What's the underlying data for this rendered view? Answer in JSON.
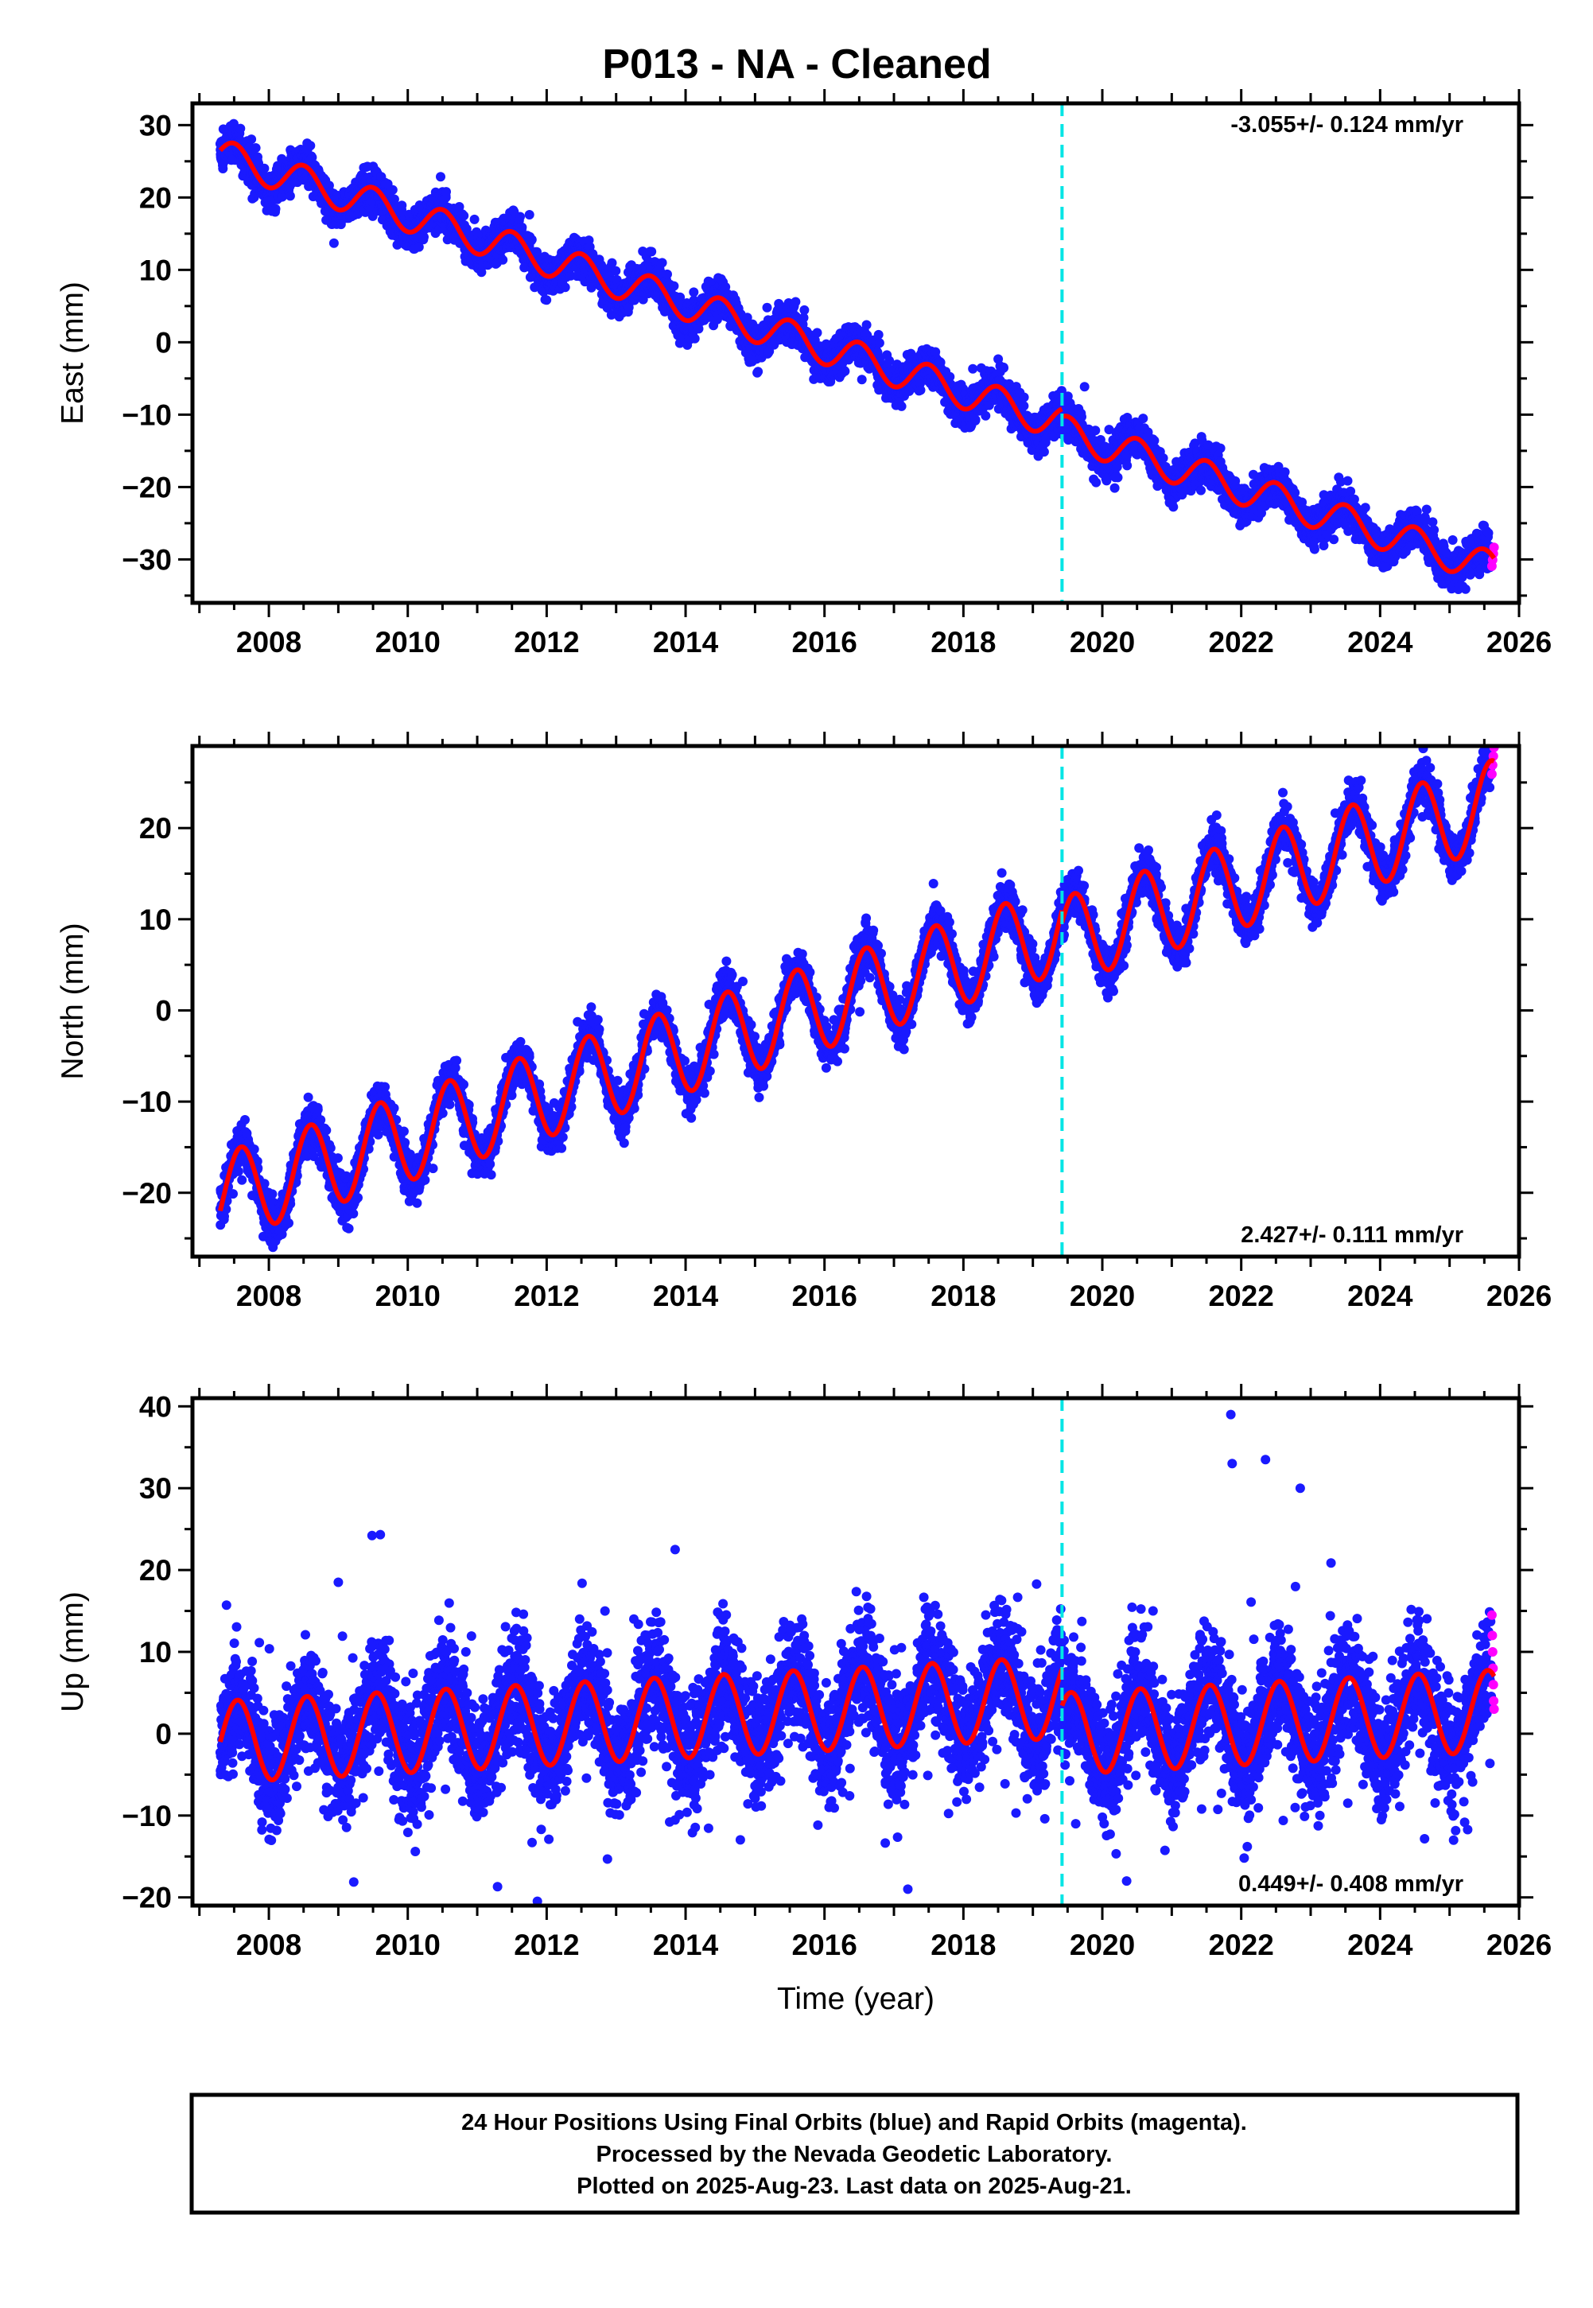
{
  "title": "P013  - NA - Cleaned",
  "colors": {
    "final_orbits": "#1a1aff",
    "rapid_orbits": "#ff00ff",
    "model": "#ff0000",
    "event": "#00e5e5"
  },
  "chart_data": [
    {
      "type": "scatter",
      "component": "east",
      "ylabel": "East (mm)",
      "xlabel": "",
      "xlim": [
        2006.9,
        2026.0
      ],
      "ylim": [
        -36,
        33
      ],
      "yticks": [
        -30,
        -20,
        -10,
        0,
        10,
        20,
        30
      ],
      "xticks": [
        2008,
        2010,
        2012,
        2014,
        2016,
        2018,
        2020,
        2022,
        2024,
        2026
      ],
      "rate_label": "-3.055+/- 0.124 mm/yr",
      "rate_position": "top-right",
      "event_line_x": 2019.42,
      "data_start": 2007.3,
      "final_end": 2025.6,
      "rapid_end": 2025.64,
      "rapid_orbits_x": [
        2025.61,
        2025.62,
        2025.63,
        2025.64
      ],
      "seasonal_amplitude": 2.3,
      "seasonal_phase": 0.25,
      "noise_sd": 1.3,
      "outlier_count": 6,
      "series": [
        {
          "segment": "before",
          "x_range": [
            2007.3,
            2019.42
          ],
          "start_value": 25.8,
          "rate": -3.055
        },
        {
          "segment": "after",
          "x_range": [
            2019.42,
            2025.64
          ],
          "start_value": -12.3,
          "rate": -3.055
        }
      ]
    },
    {
      "type": "scatter",
      "component": "north",
      "ylabel": "North (mm)",
      "xlabel": "",
      "xlim": [
        2006.9,
        2026.0
      ],
      "ylim": [
        -27,
        29
      ],
      "yticks": [
        -20,
        -10,
        0,
        10,
        20
      ],
      "xticks": [
        2008,
        2010,
        2012,
        2014,
        2016,
        2018,
        2020,
        2022,
        2024,
        2026
      ],
      "rate_label": "2.427+/- 0.111 mm/yr",
      "rate_position": "bottom-right",
      "event_line_x": 2019.42,
      "data_start": 2007.3,
      "final_end": 2025.6,
      "rapid_end": 2025.64,
      "rapid_orbits_x": [
        2025.61,
        2025.62,
        2025.63,
        2025.64
      ],
      "seasonal_amplitude": 4.8,
      "seasonal_phase": 0.35,
      "noise_sd": 1.2,
      "outlier_count": 5,
      "series": [
        {
          "segment": "before",
          "x_range": [
            2007.3,
            2019.42
          ],
          "start_value": -20.5,
          "rate": 2.427
        },
        {
          "segment": "after",
          "x_range": [
            2019.42,
            2025.64
          ],
          "start_value": 7.6,
          "rate": 2.427
        }
      ]
    },
    {
      "type": "scatter",
      "component": "up",
      "ylabel": "Up (mm)",
      "xlabel": "Time (year)",
      "xlim": [
        2006.9,
        2026.0
      ],
      "ylim": [
        -21,
        41
      ],
      "yticks": [
        -20,
        -10,
        0,
        10,
        20,
        30,
        40
      ],
      "xticks": [
        2008,
        2010,
        2012,
        2014,
        2016,
        2018,
        2020,
        2022,
        2024,
        2026
      ],
      "rate_label": "0.449+/- 0.408 mm/yr",
      "rate_position": "bottom-right",
      "event_line_x": 2019.42,
      "data_start": 2007.3,
      "final_end": 2025.6,
      "rapid_end": 2025.64,
      "rapid_orbits_x": [
        2025.61,
        2025.615,
        2025.62,
        2025.625,
        2025.63,
        2025.635,
        2025.64
      ],
      "rapid_orbits_y": [
        14.5,
        12,
        10,
        8,
        6,
        4,
        3
      ],
      "seasonal_amplitude": 5.0,
      "seasonal_phase": 0.3,
      "noise_sd": 3.6,
      "outlier_count": 40,
      "notable_points": [
        {
          "x": 2021.85,
          "y": 39
        },
        {
          "x": 2021.87,
          "y": 33
        },
        {
          "x": 2022.35,
          "y": 33.5
        },
        {
          "x": 2022.85,
          "y": 30
        },
        {
          "x": 2013.85,
          "y": 22.5
        },
        {
          "x": 2009.0,
          "y": 18.5
        },
        {
          "x": 2017.2,
          "y": -19
        },
        {
          "x": 2020.35,
          "y": -18
        }
      ],
      "series": [
        {
          "segment": "before",
          "x_range": [
            2007.3,
            2019.42
          ],
          "start_value": -1.0,
          "rate": 0.449
        },
        {
          "segment": "after",
          "x_range": [
            2019.42,
            2025.64
          ],
          "start_value": 0.0,
          "rate": 0.449
        }
      ]
    }
  ],
  "footer": {
    "line1": "24 Hour Positions Using Final Orbits (blue) and Rapid Orbits (magenta).",
    "line2": "Processed by the Nevada Geodetic Laboratory.",
    "line3": "Plotted on 2025-Aug-23. Last data on 2025-Aug-21."
  }
}
